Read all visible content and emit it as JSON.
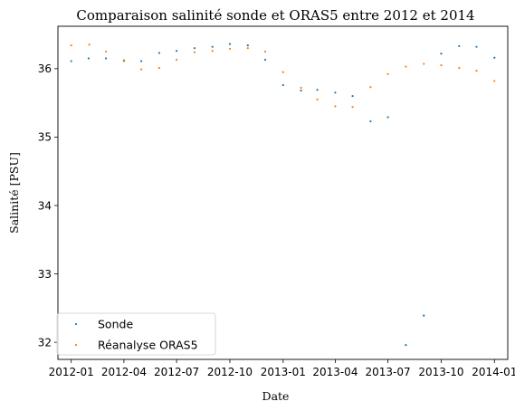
{
  "chart_data": {
    "type": "scatter",
    "title": "Comparaison salinité sonde et ORAS5 entre 2012 et 2014",
    "xlabel": "Date",
    "ylabel": "Salinité [PSU]",
    "x_type": "date",
    "xlim": [
      "2011-12-09",
      "2014-01-24"
    ],
    "ylim": [
      31.75,
      36.62
    ],
    "xticks": [
      "2012-01-01",
      "2012-04-01",
      "2012-07-01",
      "2012-10-01",
      "2013-01-01",
      "2013-04-01",
      "2013-07-01",
      "2013-10-01",
      "2014-01-01"
    ],
    "xtick_labels": [
      "2012-01",
      "2012-04",
      "2012-07",
      "2012-10",
      "2013-01",
      "2013-04",
      "2013-07",
      "2013-10",
      "2014-01"
    ],
    "yticks": [
      32,
      33,
      34,
      35,
      36
    ],
    "ytick_labels": [
      "32",
      "33",
      "34",
      "35",
      "36"
    ],
    "grid": false,
    "legend_position": "lower-left",
    "series": [
      {
        "name": "Sonde",
        "color": "#1f77b4",
        "points": [
          {
            "x": "2012-01-01",
            "y": 36.11
          },
          {
            "x": "2012-01-31",
            "y": 36.15
          },
          {
            "x": "2012-03-01",
            "y": 36.15
          },
          {
            "x": "2012-04-01",
            "y": 36.12
          },
          {
            "x": "2012-05-01",
            "y": 36.11
          },
          {
            "x": "2012-06-01",
            "y": 36.23
          },
          {
            "x": "2012-07-01",
            "y": 36.26
          },
          {
            "x": "2012-08-01",
            "y": 36.3
          },
          {
            "x": "2012-09-01",
            "y": 36.32
          },
          {
            "x": "2012-10-01",
            "y": 36.36
          },
          {
            "x": "2012-11-01",
            "y": 36.34
          },
          {
            "x": "2012-12-01",
            "y": 36.13
          },
          {
            "x": "2013-01-01",
            "y": 35.76
          },
          {
            "x": "2013-02-01",
            "y": 35.68
          },
          {
            "x": "2013-03-01",
            "y": 35.69
          },
          {
            "x": "2013-04-01",
            "y": 35.65
          },
          {
            "x": "2013-05-01",
            "y": 35.6
          },
          {
            "x": "2013-06-01",
            "y": 35.23
          },
          {
            "x": "2013-07-01",
            "y": 35.29
          },
          {
            "x": "2013-08-01",
            "y": 31.96
          },
          {
            "x": "2013-09-01",
            "y": 32.39
          },
          {
            "x": "2013-10-01",
            "y": 36.22
          },
          {
            "x": "2013-11-01",
            "y": 36.33
          },
          {
            "x": "2013-12-01",
            "y": 36.32
          },
          {
            "x": "2014-01-01",
            "y": 36.16
          }
        ]
      },
      {
        "name": "Réanalyse ORAS5",
        "color": "#ff7f0e",
        "points": [
          {
            "x": "2012-01-01",
            "y": 36.34
          },
          {
            "x": "2012-02-01",
            "y": 36.35
          },
          {
            "x": "2012-03-01",
            "y": 36.25
          },
          {
            "x": "2012-04-01",
            "y": 36.11
          },
          {
            "x": "2012-05-01",
            "y": 35.99
          },
          {
            "x": "2012-06-01",
            "y": 36.01
          },
          {
            "x": "2012-07-01",
            "y": 36.13
          },
          {
            "x": "2012-08-01",
            "y": 36.24
          },
          {
            "x": "2012-09-01",
            "y": 36.26
          },
          {
            "x": "2012-10-01",
            "y": 36.29
          },
          {
            "x": "2012-11-01",
            "y": 36.3
          },
          {
            "x": "2012-12-01",
            "y": 36.25
          },
          {
            "x": "2013-01-01",
            "y": 35.95
          },
          {
            "x": "2013-02-01",
            "y": 35.72
          },
          {
            "x": "2013-03-01",
            "y": 35.55
          },
          {
            "x": "2013-04-01",
            "y": 35.45
          },
          {
            "x": "2013-05-01",
            "y": 35.44
          },
          {
            "x": "2013-06-01",
            "y": 35.73
          },
          {
            "x": "2013-07-01",
            "y": 35.92
          },
          {
            "x": "2013-08-01",
            "y": 36.03
          },
          {
            "x": "2013-09-01",
            "y": 36.07
          },
          {
            "x": "2013-10-01",
            "y": 36.05
          },
          {
            "x": "2013-11-01",
            "y": 36.01
          },
          {
            "x": "2013-12-01",
            "y": 35.97
          },
          {
            "x": "2014-01-01",
            "y": 35.82
          }
        ]
      }
    ]
  }
}
